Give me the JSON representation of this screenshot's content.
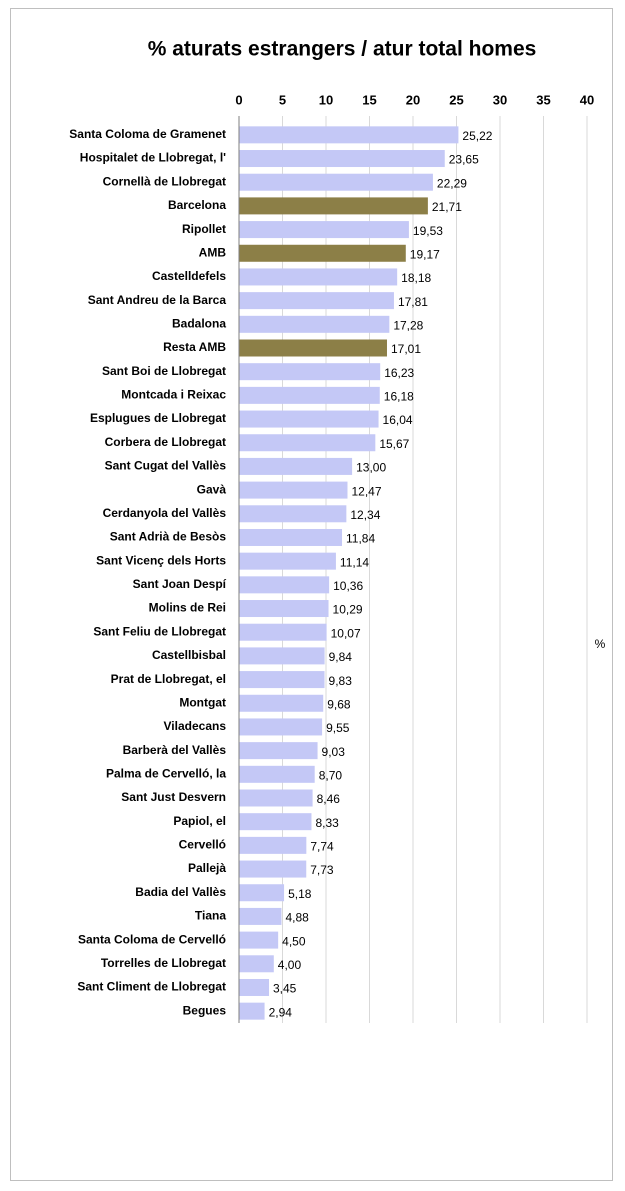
{
  "chart_data": {
    "type": "bar",
    "orientation": "horizontal",
    "title": "%  aturats estrangers / atur total homes",
    "categories": [
      "Santa Coloma de Gramenet",
      "Hospitalet de Llobregat, l'",
      "Cornellà de Llobregat",
      "Barcelona",
      "Ripollet",
      "AMB",
      "Castelldefels",
      "Sant Andreu de la Barca",
      "Badalona",
      "Resta AMB",
      "Sant Boi de Llobregat",
      "Montcada i Reixac",
      "Esplugues de Llobregat",
      "Corbera de Llobregat",
      "Sant Cugat del Vallès",
      "Gavà",
      "Cerdanyola del Vallès",
      "Sant Adrià de Besòs",
      "Sant Vicenç dels Horts",
      "Sant Joan Despí",
      "Molins de Rei",
      "Sant Feliu de Llobregat",
      "Castellbisbal",
      "Prat de Llobregat, el",
      "Montgat",
      "Viladecans",
      "Barberà del Vallès",
      "Palma de Cervelló, la",
      "Sant Just Desvern",
      "Papiol, el",
      "Cervelló",
      "Pallejà",
      "Badia del Vallès",
      "Tiana",
      "Santa Coloma de Cervelló",
      "Torrelles de Llobregat",
      "Sant Climent de Llobregat",
      "Begues"
    ],
    "series": [
      {
        "name": "%",
        "values": [
          25.22,
          23.65,
          22.29,
          21.71,
          19.53,
          19.17,
          18.18,
          17.81,
          17.28,
          17.01,
          16.23,
          16.18,
          16.04,
          15.67,
          13.0,
          12.47,
          12.34,
          11.84,
          11.14,
          10.36,
          10.29,
          10.07,
          9.84,
          9.83,
          9.68,
          9.55,
          9.03,
          8.7,
          8.46,
          8.33,
          7.74,
          7.73,
          5.18,
          4.88,
          4.5,
          4.0,
          3.45,
          2.94
        ],
        "value_labels": [
          "25,22",
          "23,65",
          "22,29",
          "21,71",
          "19,53",
          "19,17",
          "18,18",
          "17,81",
          "17,28",
          "17,01",
          "16,23",
          "16,18",
          "16,04",
          "15,67",
          "13,00",
          "12,47",
          "12,34",
          "11,84",
          "11,14",
          "10,36",
          "10,29",
          "10,07",
          "9,84",
          "9,83",
          "9,68",
          "9,55",
          "9,03",
          "8,70",
          "8,46",
          "8,33",
          "7,74",
          "7,73",
          "5,18",
          "4,88",
          "4,50",
          "4,00",
          "3,45",
          "2,94"
        ],
        "colors": [
          "#c4c8f6",
          "#c4c8f6",
          "#c4c8f6",
          "#8c7f47",
          "#c4c8f6",
          "#8c7f47",
          "#c4c8f6",
          "#c4c8f6",
          "#c4c8f6",
          "#8c7f47",
          "#c4c8f6",
          "#c4c8f6",
          "#c4c8f6",
          "#c4c8f6",
          "#c4c8f6",
          "#c4c8f6",
          "#c4c8f6",
          "#c4c8f6",
          "#c4c8f6",
          "#c4c8f6",
          "#c4c8f6",
          "#c4c8f6",
          "#c4c8f6",
          "#c4c8f6",
          "#c4c8f6",
          "#c4c8f6",
          "#c4c8f6",
          "#c4c8f6",
          "#c4c8f6",
          "#c4c8f6",
          "#c4c8f6",
          "#c4c8f6",
          "#c4c8f6",
          "#c4c8f6",
          "#c4c8f6",
          "#c4c8f6",
          "#c4c8f6",
          "#c4c8f6"
        ]
      }
    ],
    "xlim": [
      0,
      40
    ],
    "xticks": [
      0,
      5,
      10,
      15,
      20,
      25,
      30,
      35,
      40
    ],
    "grid": true,
    "legend": "right"
  }
}
